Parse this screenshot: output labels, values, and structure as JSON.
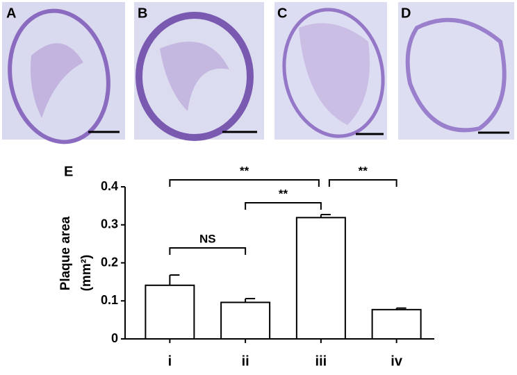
{
  "panels": [
    "A",
    "B",
    "C",
    "D"
  ],
  "chart_data": {
    "type": "bar",
    "label": "E",
    "categories": [
      "i",
      "ii",
      "iii",
      "iv"
    ],
    "values": [
      0.141,
      0.096,
      0.319,
      0.077
    ],
    "errors": [
      0.027,
      0.01,
      0.008,
      0.004
    ],
    "color": "#ffffff",
    "ylabel": "Plaque area",
    "ylabel_unit": "(mm²)",
    "ylim": [
      0,
      0.4
    ],
    "yticks": [
      0,
      0.1,
      0.2,
      0.3,
      0.4
    ],
    "annotations": [
      "**",
      "**",
      "**",
      "NS"
    ]
  }
}
